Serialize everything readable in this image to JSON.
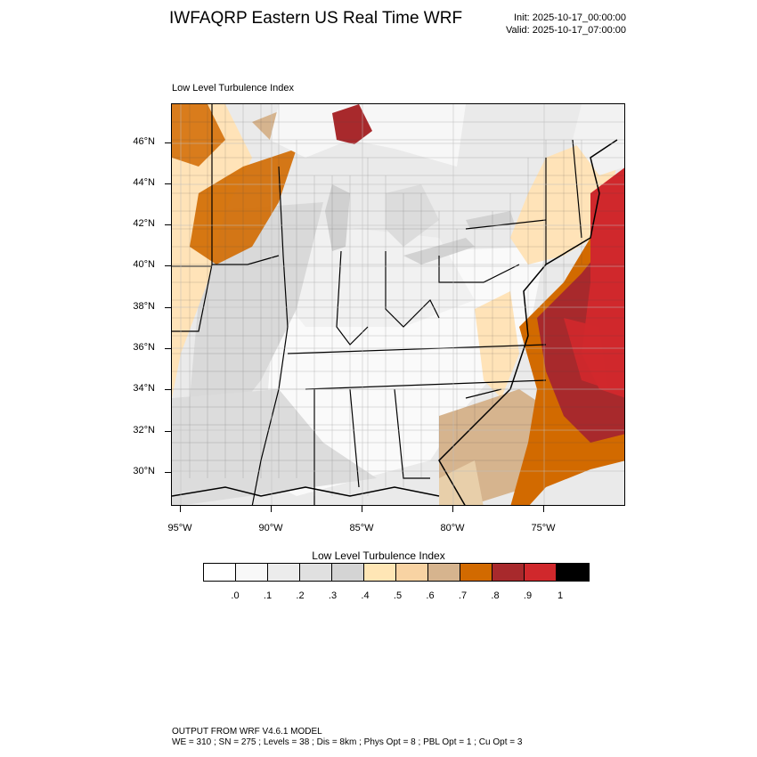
{
  "header": {
    "title": "IWFAQRP Eastern US Real Time WRF",
    "init": "Init: 2025-10-17_00:00:00",
    "valid": "Valid: 2025-10-17_07:00:00"
  },
  "panel": {
    "title": "Low Level Turbulence Index"
  },
  "map": {
    "latitude_labels": [
      "46°N",
      "44°N",
      "42°N",
      "40°N",
      "38°N",
      "36°N",
      "34°N",
      "32°N",
      "30°N"
    ],
    "longitude_labels": [
      "95°W",
      "90°W",
      "85°W",
      "80°W",
      "75°W"
    ],
    "colors": {
      "ocean": "#f5f5f5",
      "background": "#eeeeee",
      "light_gray": "#dcdcdc",
      "mid_gray": "#d2d2d2",
      "pale_orange": "#ffe3b8",
      "light_orange": "#fbd6a5",
      "tan": "#d6b48e",
      "orange": "#d26a00",
      "dark_red": "#a8292c",
      "red": "#d0282c"
    }
  },
  "colorbar": {
    "title": "Low Level Turbulence Index",
    "labels": [
      ".0",
      ".1",
      ".2",
      ".3",
      ".4",
      ".5",
      ".6",
      ".7",
      ".8",
      ".9",
      "1"
    ],
    "colors": [
      "#ffffff",
      "#f8f8f8",
      "#ececec",
      "#e0e0e0",
      "#d4d4d4",
      "#ffe6b5",
      "#f8d3a3",
      "#d6b48e",
      "#d26a00",
      "#a8292c",
      "#d0282c",
      "#000000"
    ]
  },
  "footer": {
    "line1": "OUTPUT FROM WRF V4.6.1 MODEL",
    "line2": "WE = 310 ; SN = 275 ; Levels = 38 ; Dis = 8km ; Phys Opt = 8 ; PBL Opt = 1 ; Cu Opt = 3"
  }
}
